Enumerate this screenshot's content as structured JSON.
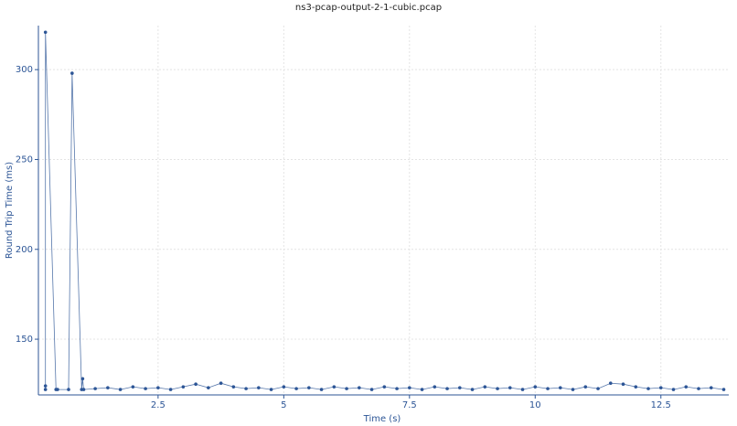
{
  "chart_data": {
    "type": "line",
    "title": "ns3-pcap-output-2-1-cubic.pcap",
    "x_label": "Time (s)",
    "y_label": "Round Trip Time (ms)",
    "color": "#2c5596",
    "grid": true,
    "xlim": [
      0.12,
      13.85
    ],
    "ylim": [
      119,
      324.5
    ],
    "xticks": [
      2.5,
      5,
      7.5,
      10,
      12.5
    ],
    "yticks": [
      150,
      200,
      250,
      300
    ],
    "x": [
      0.26,
      0.26,
      0.26,
      0.47,
      0.5,
      0.72,
      0.79,
      0.98,
      1.0,
      1.02,
      1.25,
      1.5,
      1.75,
      2,
      2.25,
      2.5,
      2.75,
      3,
      3.25,
      3.5,
      3.75,
      4,
      4.25,
      4.5,
      4.75,
      5,
      5.25,
      5.5,
      5.75,
      6,
      6.25,
      6.5,
      6.75,
      7,
      7.25,
      7.5,
      7.75,
      8,
      8.25,
      8.5,
      8.75,
      9,
      9.25,
      9.5,
      9.75,
      10,
      10.25,
      10.5,
      10.75,
      11,
      11.25,
      11.5,
      11.75,
      12,
      12.25,
      12.5,
      12.75,
      13,
      13.25,
      13.5,
      13.75
    ],
    "values": [
      122,
      124,
      320.8,
      122,
      122,
      122,
      298,
      122,
      128,
      122,
      122.5,
      123,
      122,
      123.5,
      122.5,
      123,
      122,
      123.5,
      125,
      123,
      125.5,
      123.5,
      122.5,
      123,
      122,
      123.5,
      122.5,
      123,
      122,
      123.5,
      122.5,
      123,
      122,
      123.5,
      122.5,
      123,
      122,
      123.5,
      122.5,
      123,
      122,
      123.5,
      122.5,
      123,
      122,
      123.5,
      122.5,
      123,
      122,
      123.5,
      122.5,
      125.5,
      125,
      123.5,
      122.5,
      123,
      122,
      123.5,
      122.5,
      123,
      122
    ]
  }
}
